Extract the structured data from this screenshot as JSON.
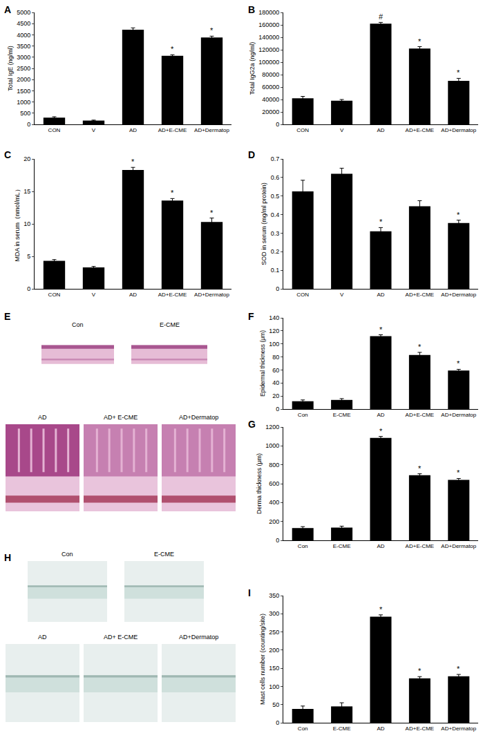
{
  "chart_data": [
    {
      "panel": "A",
      "type": "bar",
      "ylabel": "Total IgE (ng/ml)",
      "categories": [
        "CON",
        "V",
        "AD",
        "AD+E-CME",
        "AD+Dermatop"
      ],
      "values": [
        300,
        170,
        4230,
        3060,
        3880
      ],
      "errors": [
        40,
        20,
        80,
        50,
        60
      ],
      "marks": [
        null,
        null,
        null,
        "*",
        "*"
      ],
      "color": "#000000",
      "ylim": [
        0,
        5000
      ],
      "yticks": [
        0,
        500,
        1000,
        1500,
        2000,
        2500,
        3000,
        3500,
        4000,
        4500,
        5000
      ],
      "grid": false
    },
    {
      "panel": "B",
      "type": "bar",
      "ylabel": "Total IgG2a (ng/ml)",
      "categories": [
        "CON",
        "V",
        "AD",
        "AD+E-CME",
        "AD+Dermatop"
      ],
      "values": [
        42000,
        38000,
        162000,
        122000,
        70000
      ],
      "errors": [
        3000,
        2000,
        2000,
        3000,
        4000
      ],
      "marks": [
        null,
        null,
        "#",
        "*",
        "*"
      ],
      "color": "#000000",
      "ylim": [
        0,
        180000
      ],
      "yticks": [
        0,
        20000,
        40000,
        60000,
        80000,
        100000,
        120000,
        140000,
        160000,
        180000
      ],
      "grid": false
    },
    {
      "panel": "C",
      "type": "bar",
      "ylabel": "MDA in serum（nmol/mL）",
      "categories": [
        "CON",
        "V",
        "AD",
        "AD+E-CME",
        "AD+Dermatop"
      ],
      "values": [
        4.3,
        3.3,
        18.3,
        13.6,
        10.3
      ],
      "errors": [
        0.2,
        0.15,
        0.4,
        0.3,
        0.6
      ],
      "marks": [
        null,
        null,
        "*",
        "*",
        "*"
      ],
      "color": "#000000",
      "ylim": [
        0,
        20
      ],
      "yticks": [
        0,
        5,
        10,
        15,
        20
      ],
      "grid": false
    },
    {
      "panel": "D",
      "type": "bar",
      "ylabel": "SOD in serum (mg/ml protein)",
      "categories": [
        "CON",
        "V",
        "AD",
        "AD+E-CME",
        "AD+Dermatop"
      ],
      "values": [
        0.525,
        0.62,
        0.31,
        0.445,
        0.355
      ],
      "errors": [
        0.06,
        0.03,
        0.02,
        0.03,
        0.015
      ],
      "marks": [
        null,
        null,
        "*",
        null,
        "*"
      ],
      "color": "#000000",
      "ylim": [
        0,
        0.7
      ],
      "yticks": [
        0,
        0.1,
        0.2,
        0.3,
        0.4,
        0.5,
        0.6,
        0.7
      ],
      "grid": false
    },
    {
      "panel": "F",
      "type": "bar",
      "ylabel": "Epidermal thickness (μm)",
      "categories": [
        "Con",
        "E-CME",
        "AD",
        "AD+E-CME",
        "AD+Dermatop"
      ],
      "values": [
        12,
        14,
        112,
        83,
        59
      ],
      "errors": [
        2,
        2,
        2,
        4,
        2
      ],
      "marks": [
        null,
        null,
        "*",
        "*",
        "*"
      ],
      "color": "#000000",
      "ylim": [
        0,
        140
      ],
      "yticks": [
        0,
        20,
        40,
        60,
        80,
        100,
        120,
        140
      ],
      "grid": false
    },
    {
      "panel": "G",
      "type": "bar",
      "ylabel": "Derma thickness (μm)",
      "categories": [
        "Con",
        "E-CME",
        "AD",
        "AD+E-CME",
        "AD+Dermatop"
      ],
      "values": [
        130,
        135,
        1085,
        690,
        640
      ],
      "errors": [
        15,
        15,
        15,
        15,
        15
      ],
      "marks": [
        null,
        null,
        "*",
        "*",
        "*"
      ],
      "color": "#000000",
      "ylim": [
        0,
        1200
      ],
      "yticks": [
        0,
        200,
        400,
        600,
        800,
        1000,
        1200
      ],
      "grid": false
    },
    {
      "panel": "I",
      "type": "bar",
      "ylabel": "Mast cells number (counting/site)",
      "categories": [
        "Con",
        "E-CME",
        "AD",
        "AD+E-CME",
        "AD+Dermatop"
      ],
      "values": [
        38,
        45,
        292,
        122,
        128
      ],
      "errors": [
        8,
        10,
        5,
        5,
        5
      ],
      "marks": [
        null,
        null,
        "*",
        "*",
        "*"
      ],
      "color": "#000000",
      "ylim": [
        0,
        350
      ],
      "yticks": [
        0,
        50,
        100,
        150,
        200,
        250,
        300,
        350
      ],
      "grid": false
    }
  ],
  "image_panels": [
    {
      "panel": "E",
      "labels": [
        "Con",
        "E-CME",
        "AD",
        "AD+ E-CME",
        "AD+Dermatop"
      ]
    },
    {
      "panel": "H",
      "labels": [
        "Con",
        "E-CME",
        "AD",
        "AD+ E-CME",
        "AD+Dermatop"
      ]
    }
  ]
}
